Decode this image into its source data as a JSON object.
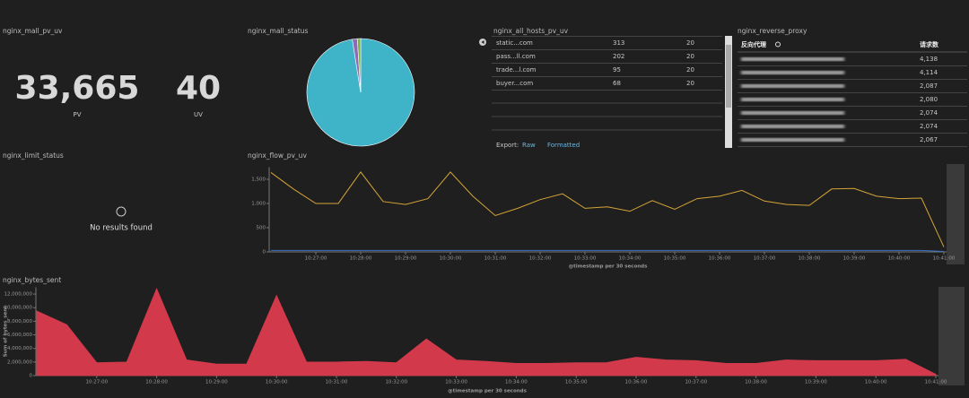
{
  "metric_panel": {
    "title": "nginx_mall_pv_uv",
    "metrics": [
      {
        "value": "33,665",
        "label": "PV"
      },
      {
        "value": "40",
        "label": "UV"
      }
    ]
  },
  "pie_panel": {
    "title": "nginx_mall_status",
    "chart_data": {
      "type": "pie",
      "values": [
        97.5,
        1.5,
        1
      ],
      "colors": [
        "#3fb4c8",
        "#8e6bb8",
        "#7cb342"
      ]
    }
  },
  "hosts_table": {
    "title": "nginx_all_hosts_pv_uv",
    "rows": [
      [
        "static...com",
        "313",
        "20"
      ],
      [
        "pass...ll.com",
        "202",
        "20"
      ],
      [
        "trade...l.com",
        "95",
        "20"
      ],
      [
        "buyer...com",
        "68",
        "20"
      ]
    ],
    "export_label": "Export:",
    "export_links": [
      "Raw",
      "Formatted"
    ]
  },
  "proxy_table": {
    "title": "nginx_reverse_proxy",
    "columns": [
      "反向代理",
      "请求数"
    ],
    "values": [
      "4,138",
      "4,114",
      "2,087",
      "2,080",
      "2,074",
      "2,074",
      "2,067"
    ]
  },
  "limit_panel": {
    "title": "nginx_limit_status",
    "message": "No results found"
  },
  "flow_chart": {
    "title": "nginx_flow_pv_uv",
    "type": "line",
    "categories": [
      null,
      null,
      "10:27:00",
      null,
      "10:28:00",
      null,
      "10:29:00",
      null,
      "10:30:00",
      null,
      "10:31:00",
      null,
      "10:32:00",
      null,
      "10:33:00",
      null,
      "10:34:00",
      null,
      "10:35:00",
      null,
      "10:36:00",
      null,
      "10:37:00",
      null,
      "10:38:00",
      null,
      "10:39:00",
      null,
      "10:40:00",
      null,
      "10:41:00"
    ],
    "series": [
      {
        "color": "#d4a437",
        "values": [
          1640,
          1300,
          1000,
          1000,
          1650,
          1040,
          980,
          1100,
          1650,
          1150,
          750,
          900,
          1080,
          1200,
          900,
          930,
          840,
          1060,
          880,
          1100,
          1150,
          1270,
          1050,
          980,
          960,
          1300,
          1310,
          1150,
          1100,
          1110,
          100
        ]
      },
      {
        "color": "#3a6fc4",
        "values": [
          30,
          30,
          30,
          30,
          30,
          30,
          30,
          30,
          30,
          30,
          30,
          30,
          30,
          30,
          30,
          30,
          30,
          30,
          30,
          30,
          30,
          30,
          30,
          30,
          30,
          30,
          30,
          30,
          30,
          30,
          10
        ]
      }
    ],
    "ylim": [
      0,
      1750
    ],
    "yticks": [
      0,
      500,
      {
        "value": 1000,
        "label": "1,000"
      },
      {
        "value": 1500,
        "label": "1,500"
      }
    ],
    "xlabel": "@timestamp per 30 seconds"
  },
  "bytes_chart": {
    "title": "nginx_bytes_sent",
    "type": "area",
    "categories": [
      null,
      null,
      "10:27:00",
      null,
      "10:28:00",
      null,
      "10:29:00",
      null,
      "10:30:00",
      null,
      "10:31:00",
      null,
      "10:32:00",
      null,
      "10:33:00",
      null,
      "10:34:00",
      null,
      "10:35:00",
      null,
      "10:36:00",
      null,
      "10:37:00",
      null,
      "10:38:00",
      null,
      "10:39:00",
      null,
      "10:40:00",
      null,
      "10:41:00"
    ],
    "color": "#d23a4c",
    "values": [
      9500000,
      7500000,
      1900000,
      2000000,
      12800000,
      2300000,
      1700000,
      1700000,
      11800000,
      2000000,
      2000000,
      2100000,
      1900000,
      5400000,
      2300000,
      2100000,
      1800000,
      1800000,
      1900000,
      1900000,
      2700000,
      2300000,
      2200000,
      1800000,
      1800000,
      2300000,
      2200000,
      2200000,
      2200000,
      2400000,
      200000
    ],
    "ylim": [
      0,
      13000000
    ],
    "yticks": [
      0,
      {
        "value": 2000000,
        "label": "2,000,000"
      },
      {
        "value": 4000000,
        "label": "4,000,000"
      },
      {
        "value": 6000000,
        "label": "6,000,000"
      },
      {
        "value": 8000000,
        "label": "8,000,000"
      },
      {
        "value": 10000000,
        "label": "10,000,000"
      },
      {
        "value": 12000000,
        "label": "12,000,000"
      }
    ],
    "ylabel": "Sum of bytes_sent",
    "xlabel": "@timestamp per 30 seconds"
  }
}
